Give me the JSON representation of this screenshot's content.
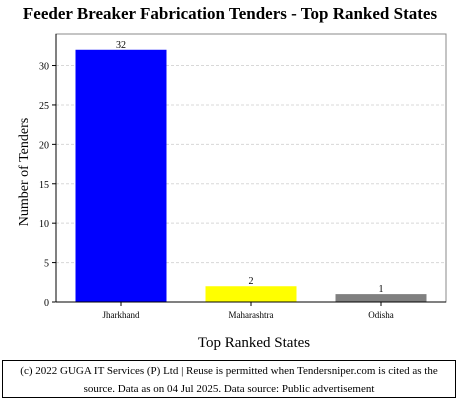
{
  "chart_data": {
    "type": "bar",
    "title": "Feeder Breaker Fabrication Tenders - Top Ranked States",
    "xlabel": "Top Ranked States",
    "ylabel": "Number of Tenders",
    "categories": [
      "Jharkhand",
      "Maharashtra",
      "Odisha"
    ],
    "values": [
      32,
      2,
      1
    ],
    "data_labels": [
      "32",
      "2",
      "1"
    ],
    "bar_colors": [
      "#0000ff",
      "#ffff00",
      "#808080"
    ],
    "ylim": [
      0,
      34
    ],
    "yticks": [
      0,
      5,
      10,
      15,
      20,
      25,
      30
    ],
    "ytick_labels": [
      "0",
      "5",
      "10",
      "15",
      "20",
      "25",
      "30"
    ],
    "grid": true,
    "legend": "none"
  },
  "footer": {
    "line1": "(c) 2022 GUGA IT Services (P) Ltd | Reuse is permitted when Tendersniper.com is cited as the",
    "line2": "source. Data as on 04 Jul 2025. Data source: Public advertisement"
  }
}
